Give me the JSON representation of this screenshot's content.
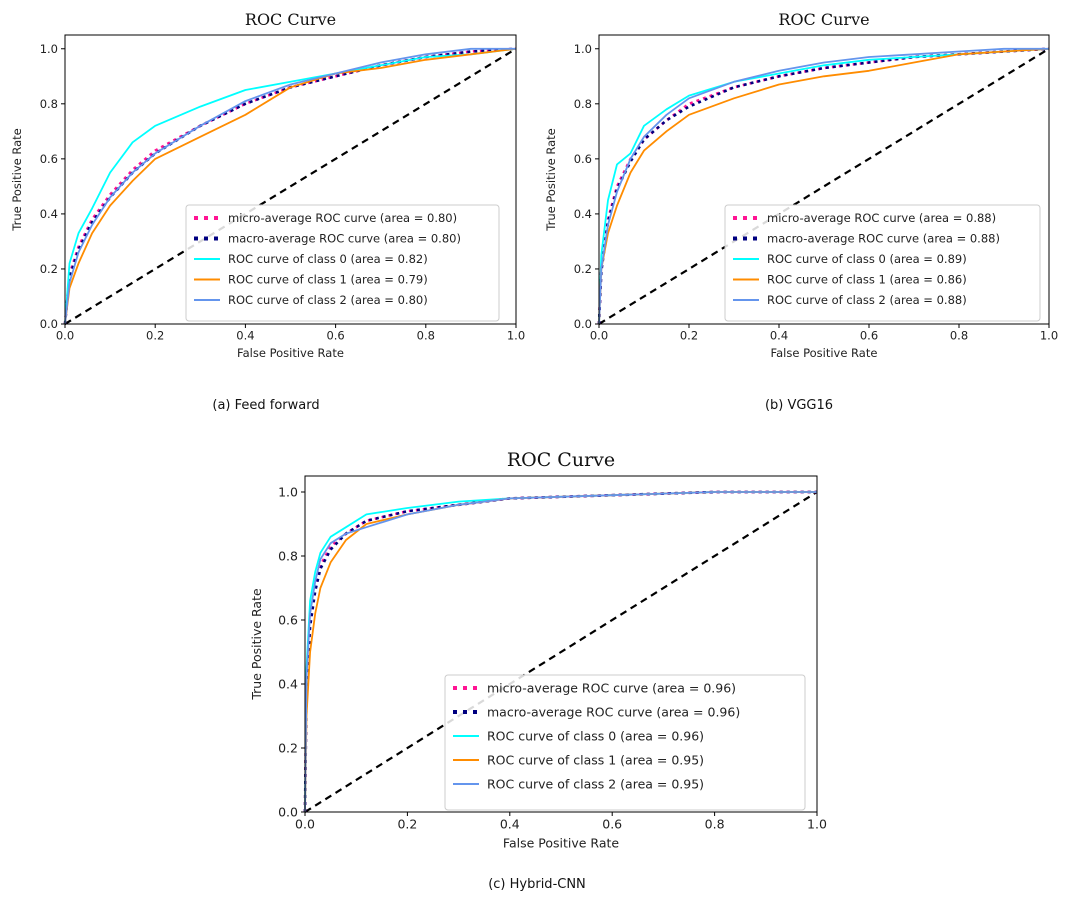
{
  "figure": {
    "captions": [
      "(a)  Feed forward",
      "(b)  VGG16",
      "(c)  Hybrid-CNN"
    ]
  },
  "chart_data": [
    {
      "type": "line",
      "title": "ROC Curve",
      "xlabel": "False Positive Rate",
      "ylabel": "True Positive Rate",
      "xlim": [
        0.0,
        1.0
      ],
      "ylim": [
        0.0,
        1.05
      ],
      "xticks": [
        "0.0",
        "0.2",
        "0.4",
        "0.6",
        "0.8",
        "1.0"
      ],
      "yticks": [
        "0.0",
        "0.2",
        "0.4",
        "0.6",
        "0.8",
        "1.0"
      ],
      "grid": false,
      "legend_position": "lower right",
      "diagonal": {
        "x": [
          0,
          1
        ],
        "y": [
          0,
          1
        ],
        "color": "#000000",
        "style": "dashed"
      },
      "series": [
        {
          "name": "micro-average ROC curve (area = 0.80)",
          "color": "#ff1493",
          "style": "dotted",
          "x": [
            0,
            0.01,
            0.03,
            0.06,
            0.1,
            0.15,
            0.2,
            0.3,
            0.4,
            0.5,
            0.6,
            0.7,
            0.8,
            0.9,
            1.0
          ],
          "y": [
            0,
            0.18,
            0.28,
            0.38,
            0.47,
            0.56,
            0.63,
            0.72,
            0.8,
            0.86,
            0.9,
            0.94,
            0.97,
            0.99,
            1.0
          ]
        },
        {
          "name": "macro-average ROC curve (area = 0.80)",
          "color": "#000080",
          "style": "dotted",
          "x": [
            0,
            0.01,
            0.03,
            0.06,
            0.1,
            0.15,
            0.2,
            0.3,
            0.4,
            0.5,
            0.6,
            0.7,
            0.8,
            0.9,
            1.0
          ],
          "y": [
            0,
            0.17,
            0.27,
            0.37,
            0.46,
            0.55,
            0.62,
            0.72,
            0.8,
            0.86,
            0.9,
            0.94,
            0.97,
            0.99,
            1.0
          ]
        },
        {
          "name": "ROC curve of class 0 (area = 0.82)",
          "color": "#00ffff",
          "style": "solid",
          "x": [
            0,
            0.01,
            0.03,
            0.06,
            0.1,
            0.15,
            0.2,
            0.3,
            0.4,
            0.5,
            0.6,
            0.7,
            0.8,
            0.9,
            1.0
          ],
          "y": [
            0,
            0.22,
            0.33,
            0.42,
            0.55,
            0.66,
            0.72,
            0.79,
            0.85,
            0.88,
            0.91,
            0.94,
            0.97,
            0.98,
            1.0
          ]
        },
        {
          "name": "ROC curve of class 1 (area = 0.79)",
          "color": "#ff8c00",
          "style": "solid",
          "x": [
            0,
            0.01,
            0.03,
            0.06,
            0.1,
            0.15,
            0.2,
            0.3,
            0.4,
            0.5,
            0.6,
            0.7,
            0.8,
            0.9,
            1.0
          ],
          "y": [
            0,
            0.13,
            0.22,
            0.33,
            0.43,
            0.52,
            0.6,
            0.68,
            0.76,
            0.86,
            0.91,
            0.93,
            0.96,
            0.98,
            1.0
          ]
        },
        {
          "name": "ROC curve of class 2 (area = 0.80)",
          "color": "#6495ed",
          "style": "solid",
          "x": [
            0,
            0.01,
            0.03,
            0.06,
            0.1,
            0.15,
            0.2,
            0.3,
            0.4,
            0.5,
            0.6,
            0.7,
            0.8,
            0.9,
            1.0
          ],
          "y": [
            0,
            0.15,
            0.26,
            0.36,
            0.46,
            0.55,
            0.62,
            0.72,
            0.81,
            0.87,
            0.91,
            0.95,
            0.98,
            1.0,
            1.0
          ]
        }
      ]
    },
    {
      "type": "line",
      "title": "ROC Curve",
      "xlabel": "False Positive Rate",
      "ylabel": "True Positive Rate",
      "xlim": [
        0.0,
        1.0
      ],
      "ylim": [
        0.0,
        1.05
      ],
      "xticks": [
        "0.0",
        "0.2",
        "0.4",
        "0.6",
        "0.8",
        "1.0"
      ],
      "yticks": [
        "0.0",
        "0.2",
        "0.4",
        "0.6",
        "0.8",
        "1.0"
      ],
      "grid": false,
      "legend_position": "lower right",
      "diagonal": {
        "x": [
          0,
          1
        ],
        "y": [
          0,
          1
        ],
        "color": "#000000",
        "style": "dashed"
      },
      "series": [
        {
          "name": "micro-average ROC curve (area = 0.88)",
          "color": "#ff1493",
          "style": "dotted",
          "x": [
            0,
            0.005,
            0.02,
            0.04,
            0.07,
            0.1,
            0.15,
            0.2,
            0.3,
            0.4,
            0.5,
            0.6,
            0.7,
            0.8,
            0.9,
            1.0
          ],
          "y": [
            0,
            0.2,
            0.38,
            0.5,
            0.6,
            0.67,
            0.74,
            0.8,
            0.86,
            0.9,
            0.93,
            0.95,
            0.97,
            0.98,
            0.99,
            1.0
          ]
        },
        {
          "name": "macro-average ROC curve (area = 0.88)",
          "color": "#000080",
          "style": "dotted",
          "x": [
            0,
            0.005,
            0.02,
            0.04,
            0.07,
            0.1,
            0.15,
            0.2,
            0.3,
            0.4,
            0.5,
            0.6,
            0.7,
            0.8,
            0.9,
            1.0
          ],
          "y": [
            0,
            0.19,
            0.37,
            0.49,
            0.59,
            0.67,
            0.74,
            0.79,
            0.86,
            0.9,
            0.93,
            0.95,
            0.97,
            0.98,
            0.99,
            1.0
          ]
        },
        {
          "name": "ROC curve of class 0 (area = 0.89)",
          "color": "#00ffff",
          "style": "solid",
          "x": [
            0,
            0.005,
            0.02,
            0.04,
            0.07,
            0.1,
            0.15,
            0.2,
            0.3,
            0.4,
            0.5,
            0.6,
            0.7,
            0.8,
            0.9,
            1.0
          ],
          "y": [
            0,
            0.25,
            0.45,
            0.58,
            0.62,
            0.72,
            0.78,
            0.83,
            0.88,
            0.91,
            0.94,
            0.96,
            0.97,
            0.98,
            0.99,
            1.0
          ]
        },
        {
          "name": "ROC curve of class 1 (area = 0.86)",
          "color": "#ff8c00",
          "style": "solid",
          "x": [
            0,
            0.005,
            0.02,
            0.04,
            0.07,
            0.1,
            0.15,
            0.2,
            0.3,
            0.4,
            0.5,
            0.6,
            0.7,
            0.8,
            0.9,
            1.0
          ],
          "y": [
            0,
            0.2,
            0.33,
            0.43,
            0.55,
            0.63,
            0.7,
            0.76,
            0.82,
            0.87,
            0.9,
            0.92,
            0.95,
            0.98,
            0.99,
            1.0
          ]
        },
        {
          "name": "ROC curve of class 2 (area = 0.88)",
          "color": "#6495ed",
          "style": "solid",
          "x": [
            0,
            0.005,
            0.02,
            0.04,
            0.07,
            0.1,
            0.15,
            0.2,
            0.3,
            0.4,
            0.5,
            0.6,
            0.7,
            0.8,
            0.9,
            1.0
          ],
          "y": [
            0,
            0.2,
            0.36,
            0.48,
            0.6,
            0.68,
            0.76,
            0.82,
            0.88,
            0.92,
            0.95,
            0.97,
            0.98,
            0.99,
            1.0,
            1.0
          ]
        }
      ]
    },
    {
      "type": "line",
      "title": "ROC Curve",
      "xlabel": "False Positive Rate",
      "ylabel": "True Positive Rate",
      "xlim": [
        0.0,
        1.0
      ],
      "ylim": [
        0.0,
        1.05
      ],
      "xticks": [
        "0.0",
        "0.2",
        "0.4",
        "0.6",
        "0.8",
        "1.0"
      ],
      "yticks": [
        "0.0",
        "0.2",
        "0.4",
        "0.6",
        "0.8",
        "1.0"
      ],
      "grid": false,
      "legend_position": "lower right",
      "diagonal": {
        "x": [
          0,
          1
        ],
        "y": [
          0,
          1
        ],
        "color": "#000000",
        "style": "dashed"
      },
      "series": [
        {
          "name": "micro-average ROC curve (area = 0.96)",
          "color": "#ff1493",
          "style": "dotted",
          "x": [
            0,
            0.003,
            0.01,
            0.02,
            0.03,
            0.05,
            0.08,
            0.12,
            0.2,
            0.3,
            0.4,
            0.6,
            0.8,
            1.0
          ],
          "y": [
            0,
            0.4,
            0.6,
            0.7,
            0.77,
            0.83,
            0.87,
            0.91,
            0.94,
            0.96,
            0.98,
            0.99,
            1.0,
            1.0
          ]
        },
        {
          "name": "macro-average ROC curve (area = 0.96)",
          "color": "#000080",
          "style": "dotted",
          "x": [
            0,
            0.003,
            0.01,
            0.02,
            0.03,
            0.05,
            0.08,
            0.12,
            0.2,
            0.3,
            0.4,
            0.6,
            0.8,
            1.0
          ],
          "y": [
            0,
            0.38,
            0.58,
            0.69,
            0.76,
            0.82,
            0.87,
            0.91,
            0.94,
            0.96,
            0.98,
            0.99,
            1.0,
            1.0
          ]
        },
        {
          "name": "ROC curve of class 0 (area = 0.96)",
          "color": "#00ffff",
          "style": "solid",
          "x": [
            0,
            0.003,
            0.01,
            0.02,
            0.03,
            0.05,
            0.08,
            0.12,
            0.2,
            0.3,
            0.4,
            0.6,
            0.8,
            1.0
          ],
          "y": [
            0,
            0.45,
            0.66,
            0.75,
            0.81,
            0.86,
            0.89,
            0.93,
            0.95,
            0.97,
            0.98,
            0.99,
            1.0,
            1.0
          ]
        },
        {
          "name": "ROC curve of class 1 (area = 0.95)",
          "color": "#ff8c00",
          "style": "solid",
          "x": [
            0,
            0.003,
            0.01,
            0.02,
            0.03,
            0.05,
            0.08,
            0.12,
            0.2,
            0.3,
            0.4,
            0.6,
            0.8,
            1.0
          ],
          "y": [
            0,
            0.3,
            0.5,
            0.62,
            0.7,
            0.78,
            0.85,
            0.9,
            0.93,
            0.96,
            0.98,
            0.99,
            1.0,
            1.0
          ]
        },
        {
          "name": "ROC curve of class 2 (area = 0.95)",
          "color": "#6495ed",
          "style": "solid",
          "x": [
            0,
            0.003,
            0.01,
            0.02,
            0.03,
            0.05,
            0.08,
            0.12,
            0.2,
            0.3,
            0.4,
            0.6,
            0.8,
            1.0
          ],
          "y": [
            0,
            0.42,
            0.62,
            0.72,
            0.79,
            0.84,
            0.87,
            0.89,
            0.93,
            0.96,
            0.98,
            0.99,
            1.0,
            1.0
          ]
        }
      ]
    }
  ]
}
